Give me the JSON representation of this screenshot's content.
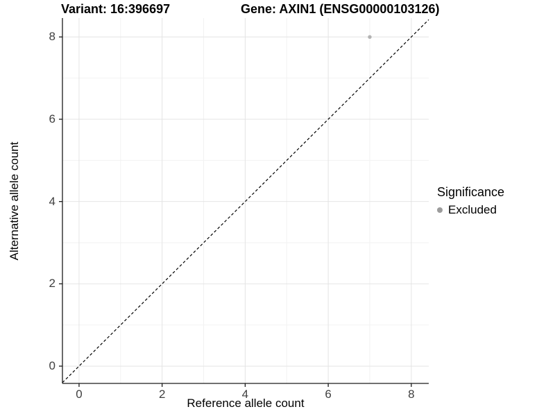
{
  "figure": {
    "title_variant": "Variant: 16:396697",
    "title_gene": "Gene: AXIN1 (ENSG00000103126)"
  },
  "chart_data": {
    "type": "scatter",
    "title": "Variant: 16:396697   Gene: AXIN1 (ENSG00000103126)",
    "xlabel": "Reference allele count",
    "ylabel": "Alternative allele count",
    "xlim": [
      -0.4,
      8.42
    ],
    "ylim": [
      -0.42,
      8.46
    ],
    "x_ticks": [
      0,
      2,
      4,
      6,
      8
    ],
    "y_ticks": [
      0,
      2,
      4,
      6,
      8
    ],
    "x_minor_ticks": [
      1,
      3,
      5,
      7
    ],
    "y_minor_ticks": [
      1,
      3,
      5,
      7
    ],
    "grid": "major and minor gridlines on, white panel background",
    "series": [
      {
        "name": "Excluded",
        "color": "#b3b3b3",
        "points": [
          {
            "x": 7,
            "y": 8
          }
        ],
        "point_radius": 2.7
      }
    ],
    "reference_line": {
      "type": "abline y = x",
      "slope": 1,
      "intercept": 0,
      "style": "dashed",
      "color": "#000000"
    },
    "legend": {
      "title": "Significance",
      "position": "right",
      "entries": [
        {
          "label": "Excluded",
          "color": "#9c9c9c"
        }
      ]
    },
    "colors": {
      "grid_major": "#e4e4e4",
      "grid_minor": "#f2f2f2",
      "axis_line": "#1a1a1a",
      "tick_label": "#404040",
      "panel_background": "#ffffff"
    }
  }
}
